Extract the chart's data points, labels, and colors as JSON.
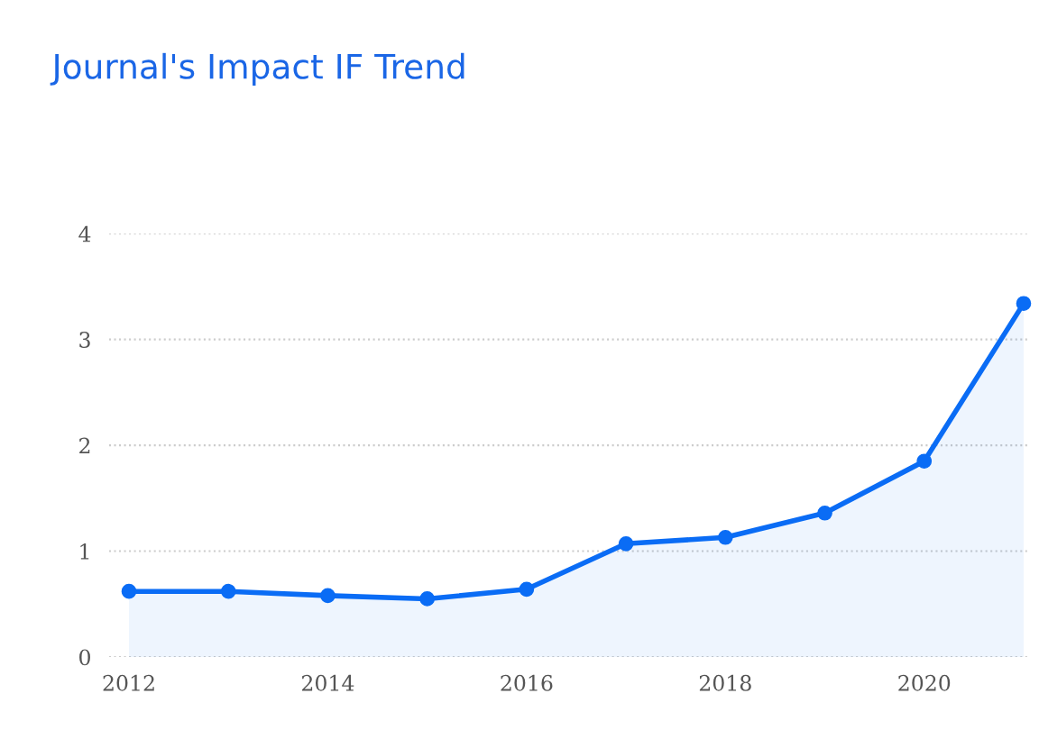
{
  "chart_data": {
    "type": "area",
    "title": "Journal's Impact IF Trend",
    "x": [
      2012,
      2013,
      2014,
      2015,
      2016,
      2017,
      2018,
      2019,
      2020,
      2021
    ],
    "series": [
      {
        "color": "#0a6cf5",
        "values": [
          0.62,
          0.62,
          0.58,
          0.55,
          0.64,
          1.07,
          1.13,
          1.36,
          1.85,
          3.34
        ]
      }
    ],
    "xlim": [
      2011.8,
      2021.05
    ],
    "xticks": [
      2012,
      2014,
      2016,
      2018,
      2020
    ],
    "ylim": [
      0,
      4
    ],
    "yticks": [
      0,
      1,
      2,
      3,
      4
    ],
    "grid": "y",
    "marker": "circle",
    "line_style": "solid"
  }
}
